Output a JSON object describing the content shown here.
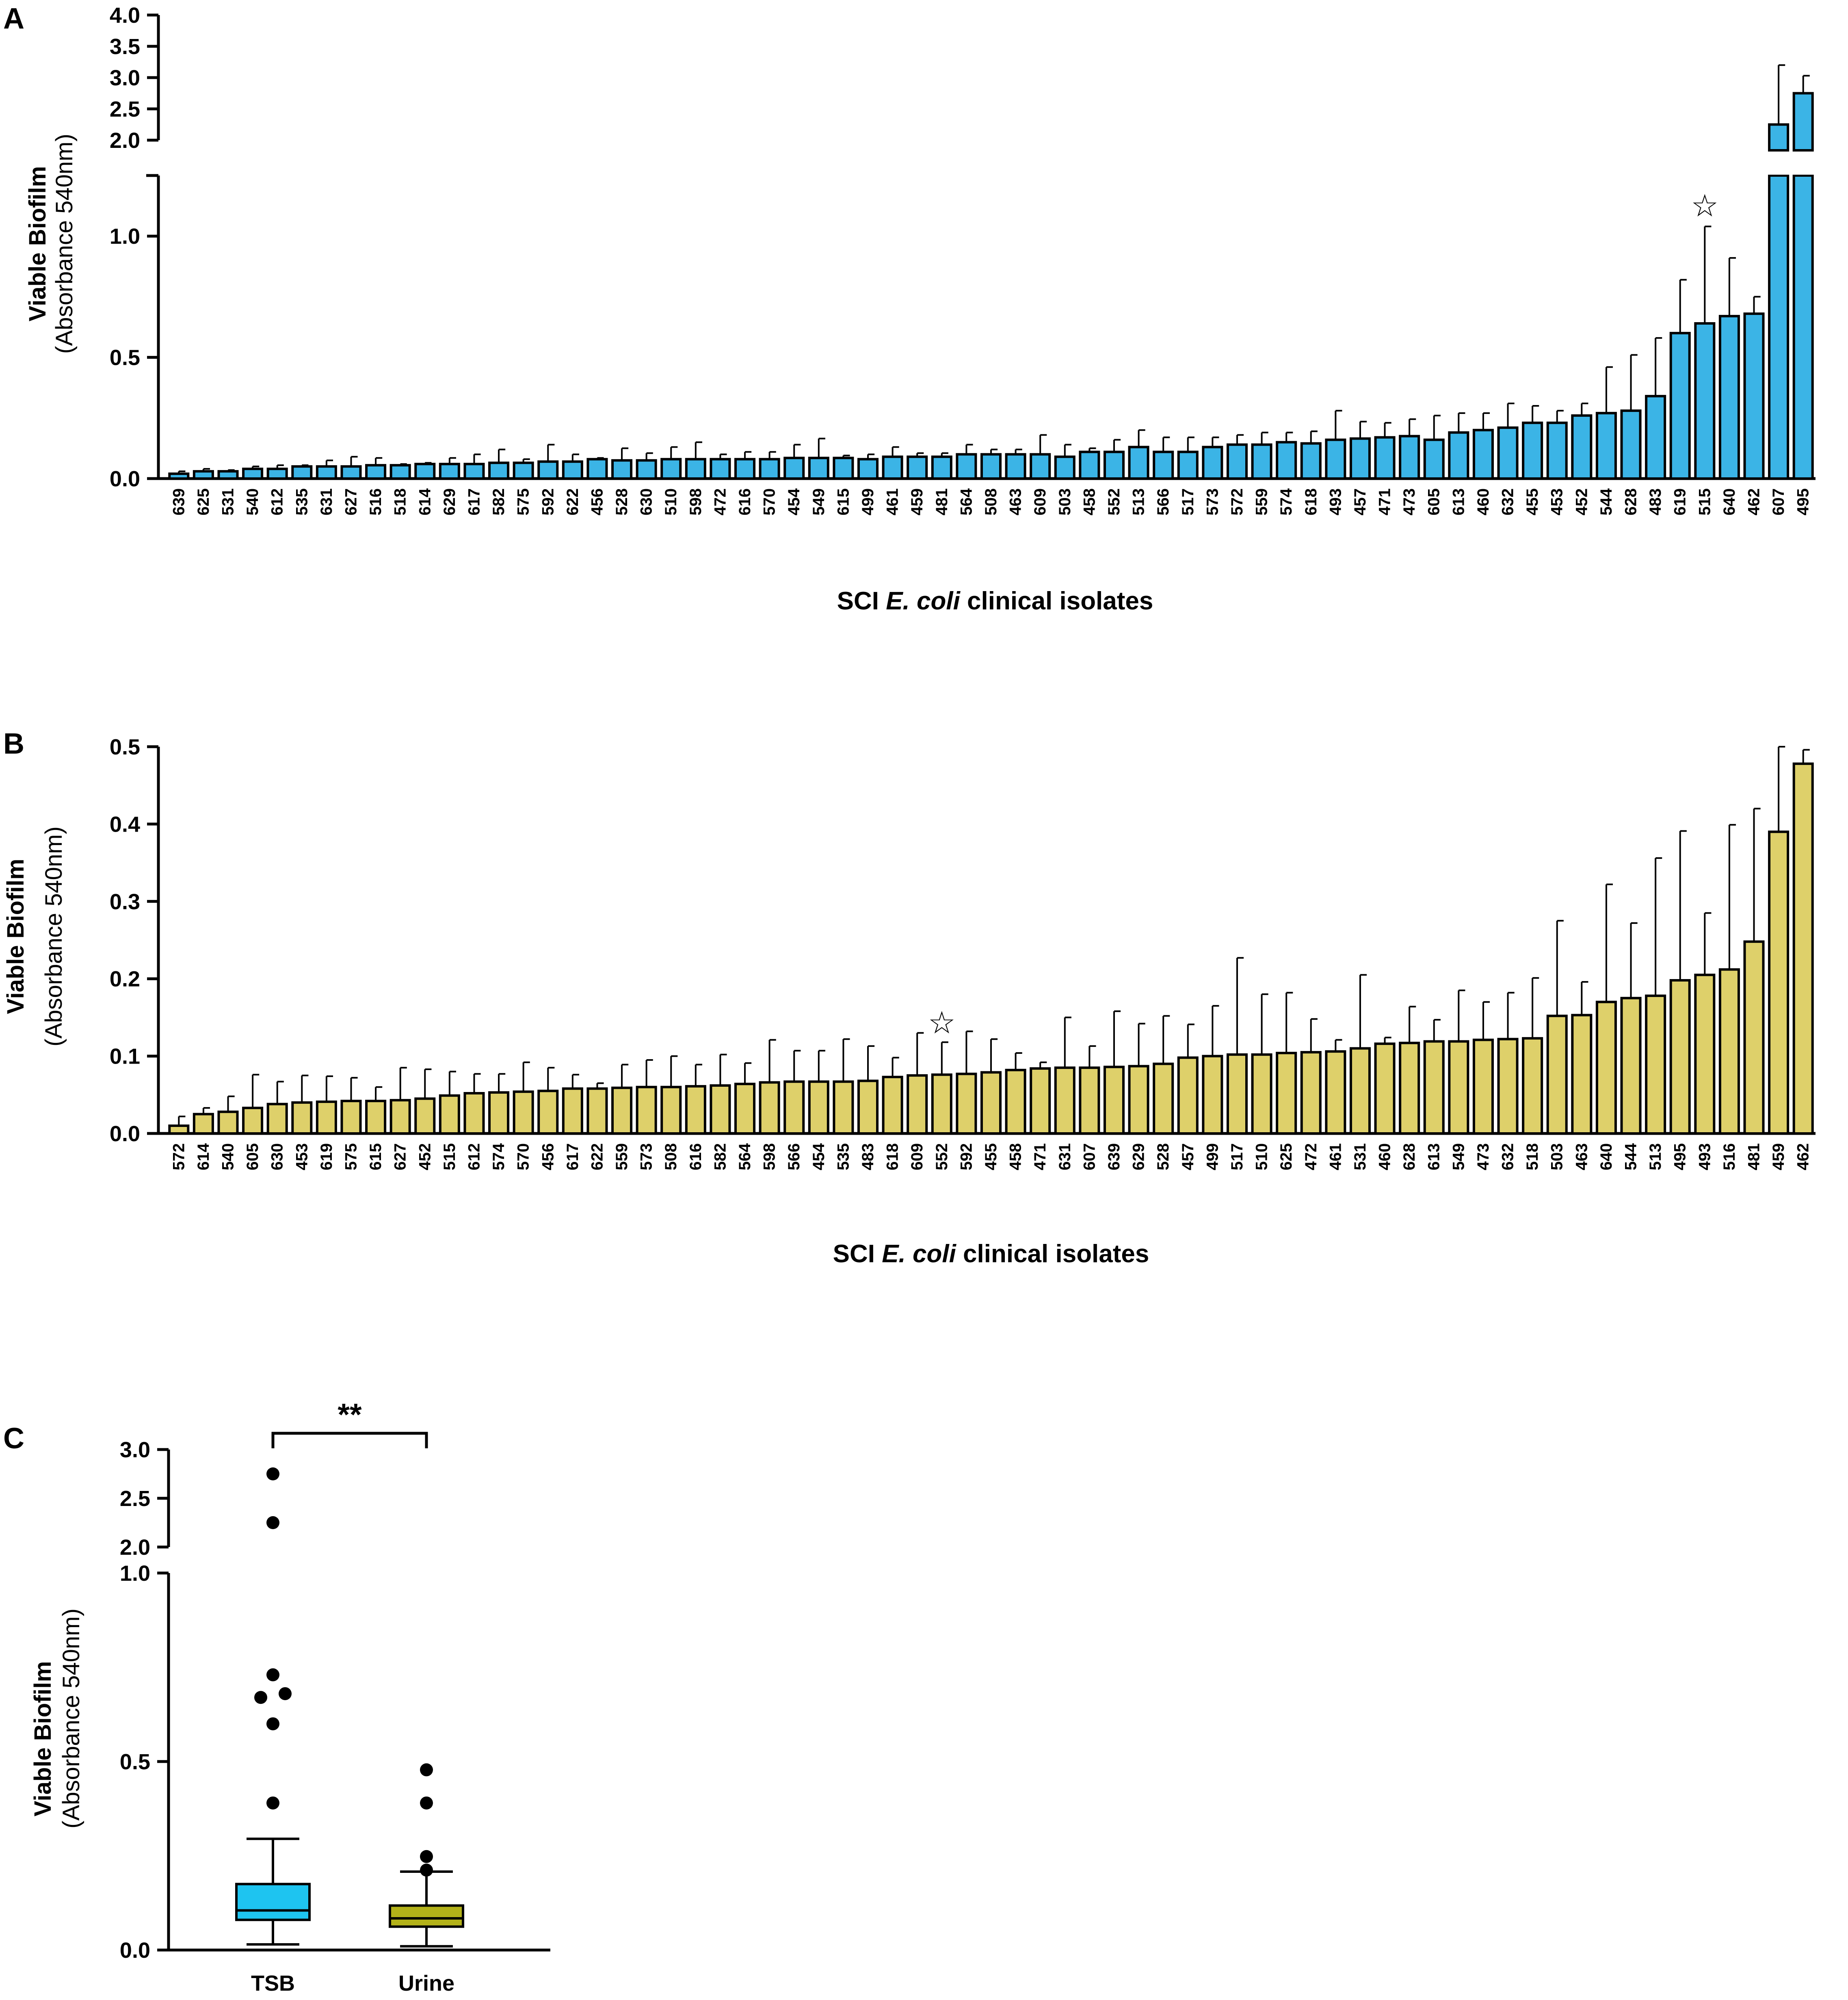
{
  "chart_data": [
    {
      "type": "bar",
      "panel": "A",
      "color": "#3bb4e6",
      "xlabel_prefix": "SCI ",
      "xlabel_italic": "E. coli",
      "xlabel_suffix": " clinical isolates",
      "ylabel_bold": "Viable Biofilm",
      "ylabel_normal": "(Absorbance 540nm)",
      "axis_break": true,
      "ylim_lower": [
        0,
        1.25
      ],
      "ylim_upper": [
        2.0,
        4.0
      ],
      "yticks_lower": [
        "0.0",
        "0.5",
        "1.0"
      ],
      "yticks_upper": [
        "2.0",
        "2.5",
        "3.0",
        "3.5",
        "4.0"
      ],
      "highlight_marker": "☆",
      "highlight_category": "515",
      "categories": [
        "639",
        "625",
        "531",
        "540",
        "612",
        "535",
        "631",
        "627",
        "516",
        "518",
        "614",
        "629",
        "617",
        "582",
        "575",
        "592",
        "622",
        "456",
        "528",
        "630",
        "510",
        "598",
        "472",
        "616",
        "570",
        "454",
        "549",
        "615",
        "499",
        "461",
        "459",
        "481",
        "564",
        "508",
        "463",
        "609",
        "503",
        "458",
        "552",
        "513",
        "566",
        "517",
        "573",
        "572",
        "559",
        "574",
        "618",
        "493",
        "457",
        "471",
        "473",
        "605",
        "613",
        "460",
        "632",
        "455",
        "453",
        "452",
        "544",
        "628",
        "483",
        "619",
        "515",
        "640",
        "462",
        "607",
        "495"
      ],
      "values": [
        0.02,
        0.03,
        0.03,
        0.04,
        0.04,
        0.05,
        0.05,
        0.05,
        0.055,
        0.055,
        0.06,
        0.06,
        0.06,
        0.065,
        0.065,
        0.07,
        0.07,
        0.08,
        0.075,
        0.075,
        0.08,
        0.08,
        0.08,
        0.08,
        0.08,
        0.085,
        0.085,
        0.085,
        0.08,
        0.09,
        0.09,
        0.09,
        0.1,
        0.1,
        0.1,
        0.1,
        0.09,
        0.11,
        0.11,
        0.13,
        0.11,
        0.11,
        0.13,
        0.14,
        0.14,
        0.15,
        0.145,
        0.16,
        0.165,
        0.17,
        0.175,
        0.16,
        0.19,
        0.2,
        0.21,
        0.23,
        0.23,
        0.26,
        0.27,
        0.28,
        0.34,
        0.6,
        0.64,
        0.67,
        0.68,
        2.25,
        2.75
      ],
      "errors": [
        0.01,
        0.01,
        0.005,
        0.01,
        0.015,
        0.005,
        0.025,
        0.04,
        0.03,
        0.005,
        0.005,
        0.025,
        0.04,
        0.055,
        0.015,
        0.07,
        0.03,
        0.005,
        0.05,
        0.03,
        0.05,
        0.07,
        0.02,
        0.03,
        0.03,
        0.055,
        0.08,
        0.01,
        0.02,
        0.04,
        0.015,
        0.015,
        0.04,
        0.02,
        0.02,
        0.08,
        0.05,
        0.015,
        0.05,
        0.07,
        0.06,
        0.06,
        0.04,
        0.04,
        0.05,
        0.04,
        0.05,
        0.12,
        0.07,
        0.06,
        0.07,
        0.1,
        0.08,
        0.07,
        0.1,
        0.07,
        0.05,
        0.05,
        0.19,
        0.23,
        0.24,
        0.22,
        0.4,
        0.24,
        0.07,
        0.95,
        0.28
      ]
    },
    {
      "type": "bar",
      "panel": "B",
      "color": "#ded06a",
      "xlabel_prefix": "SCI ",
      "xlabel_italic": "E. coli",
      "xlabel_suffix": " clinical isolates",
      "ylabel_bold": "Viable Biofilm",
      "ylabel_normal": "(Absorbance 540nm)",
      "ylim": [
        0,
        0.5
      ],
      "yticks": [
        "0.0",
        "0.1",
        "0.2",
        "0.3",
        "0.4",
        "0.5"
      ],
      "highlight_marker": "☆",
      "highlight_category": "552",
      "categories": [
        "572",
        "614",
        "540",
        "605",
        "630",
        "453",
        "619",
        "575",
        "615",
        "627",
        "452",
        "515",
        "612",
        "574",
        "570",
        "456",
        "617",
        "622",
        "559",
        "573",
        "508",
        "616",
        "582",
        "564",
        "598",
        "566",
        "454",
        "535",
        "483",
        "618",
        "609",
        "552",
        "592",
        "455",
        "458",
        "471",
        "631",
        "607",
        "639",
        "629",
        "528",
        "457",
        "499",
        "517",
        "510",
        "625",
        "472",
        "461",
        "531",
        "460",
        "628",
        "613",
        "549",
        "473",
        "632",
        "518",
        "503",
        "463",
        "640",
        "544",
        "513",
        "495",
        "493",
        "516",
        "481",
        "459",
        "462"
      ],
      "values": [
        0.01,
        0.025,
        0.028,
        0.033,
        0.038,
        0.04,
        0.041,
        0.042,
        0.042,
        0.043,
        0.045,
        0.049,
        0.052,
        0.053,
        0.054,
        0.055,
        0.058,
        0.058,
        0.059,
        0.06,
        0.06,
        0.061,
        0.062,
        0.064,
        0.066,
        0.067,
        0.067,
        0.067,
        0.068,
        0.073,
        0.075,
        0.076,
        0.077,
        0.079,
        0.082,
        0.084,
        0.085,
        0.085,
        0.086,
        0.087,
        0.09,
        0.098,
        0.1,
        0.102,
        0.102,
        0.104,
        0.105,
        0.106,
        0.11,
        0.116,
        0.117,
        0.119,
        0.119,
        0.121,
        0.122,
        0.123,
        0.152,
        0.153,
        0.17,
        0.175,
        0.178,
        0.198,
        0.205,
        0.212,
        0.248,
        0.39,
        0.478
      ],
      "errors": [
        0.012,
        0.008,
        0.02,
        0.043,
        0.029,
        0.035,
        0.033,
        0.03,
        0.018,
        0.042,
        0.038,
        0.031,
        0.025,
        0.024,
        0.038,
        0.03,
        0.018,
        0.007,
        0.03,
        0.035,
        0.04,
        0.028,
        0.04,
        0.027,
        0.055,
        0.04,
        0.04,
        0.055,
        0.045,
        0.025,
        0.055,
        0.042,
        0.055,
        0.043,
        0.022,
        0.008,
        0.065,
        0.028,
        0.072,
        0.055,
        0.062,
        0.043,
        0.065,
        0.125,
        0.078,
        0.078,
        0.043,
        0.015,
        0.095,
        0.008,
        0.047,
        0.028,
        0.066,
        0.049,
        0.06,
        0.078,
        0.123,
        0.043,
        0.152,
        0.097,
        0.178,
        0.193,
        0.08,
        0.187,
        0.172,
        0.11,
        0.018
      ]
    },
    {
      "type": "box",
      "panel": "C",
      "ylabel_bold": "Viable Biofilm",
      "ylabel_normal": "(Absorbance 540nm)",
      "axis_break": true,
      "ylim_lower": [
        0,
        1.0
      ],
      "ylim_upper": [
        2.0,
        3.0
      ],
      "yticks_lower": [
        "0.0",
        "0.5",
        "1.0"
      ],
      "yticks_upper": [
        "2.0",
        "2.5",
        "3.0"
      ],
      "significance": "**",
      "groups": [
        {
          "name": "TSB",
          "color": "#1ec4f0",
          "whisker_low": 0.015,
          "q1": 0.08,
          "median": 0.105,
          "q3": 0.175,
          "whisker_high": 0.295,
          "outliers": [
            0.39,
            0.6,
            0.67,
            0.68,
            0.73,
            2.25,
            2.75
          ]
        },
        {
          "name": "Urine",
          "color": "#b3b219",
          "whisker_low": 0.01,
          "q1": 0.062,
          "median": 0.084,
          "q3": 0.118,
          "whisker_high": 0.208,
          "outliers": [
            0.212,
            0.248,
            0.39,
            0.478
          ]
        }
      ]
    }
  ]
}
